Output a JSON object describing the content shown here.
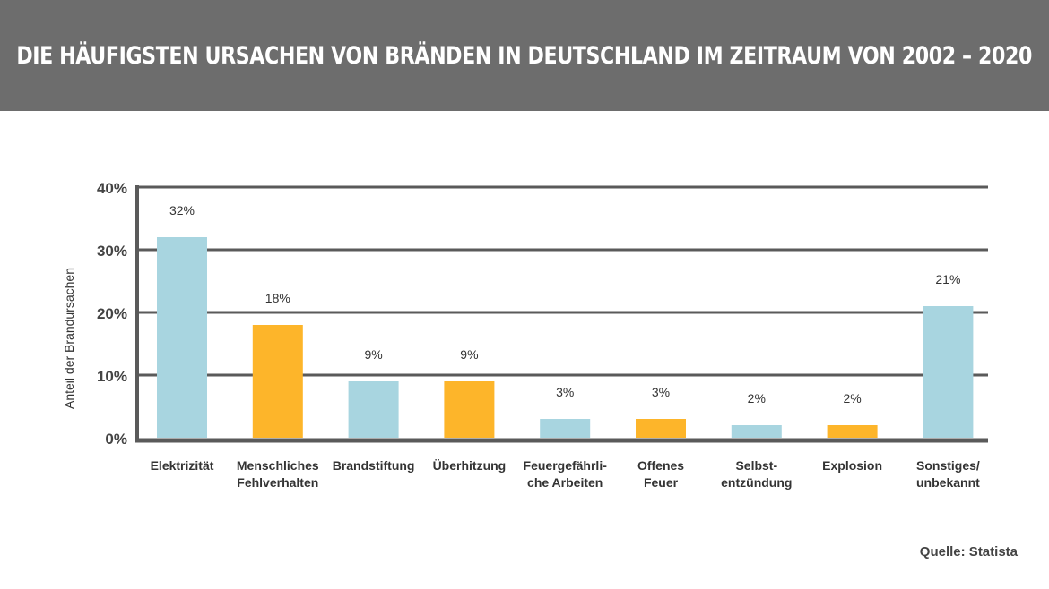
{
  "header": {
    "title": "DIE HÄUFIGSTEN URSACHEN VON BRÄNDEN IN DEUTSCHLAND IM ZEITRAUM VON 2002 – 2020"
  },
  "source": "Quelle: Statista",
  "chart_data": {
    "type": "bar",
    "title": "DIE HÄUFIGSTEN URSACHEN VON BRÄNDEN IN DEUTSCHLAND IM ZEITRAUM VON 2002 – 2020",
    "xlabel": "",
    "ylabel": "Anteil der Brandursachen",
    "ylim": [
      0,
      40
    ],
    "yticks": [
      "0%",
      "10%",
      "20%",
      "30%",
      "40%"
    ],
    "grid": true,
    "categories": [
      [
        "Elektrizität"
      ],
      [
        "Menschliches",
        "Fehlverhalten"
      ],
      [
        "Brandstiftung"
      ],
      [
        "Überhitzung"
      ],
      [
        "Feuergefährli-",
        "che Arbeiten"
      ],
      [
        "Offenes",
        "Feuer"
      ],
      [
        "Selbst-",
        "entzündung"
      ],
      [
        "Explosion"
      ],
      [
        "Sonstiges/",
        "unbekannt"
      ]
    ],
    "values": [
      32,
      18,
      9,
      9,
      3,
      3,
      2,
      2,
      21
    ],
    "data_labels": [
      "32%",
      "18%",
      "9%",
      "9%",
      "3%",
      "3%",
      "2%",
      "2%",
      "21%"
    ],
    "bar_colors": [
      "#a8d5e0",
      "#fdb52a",
      "#a8d5e0",
      "#fdb52a",
      "#a8d5e0",
      "#fdb52a",
      "#a8d5e0",
      "#fdb52a",
      "#a8d5e0"
    ]
  }
}
